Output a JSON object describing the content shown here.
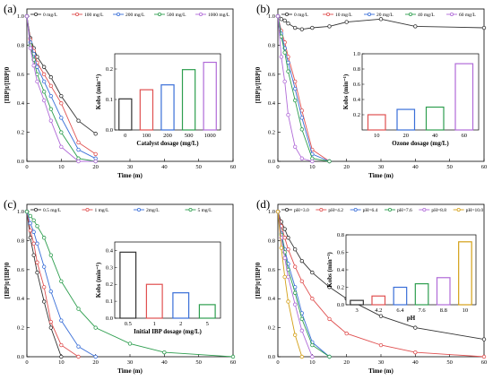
{
  "figure": {
    "panel_labels": [
      "(a)",
      "(b)",
      "(c)",
      "(d)"
    ]
  },
  "chart_data": [
    {
      "panel": "(a)",
      "type": "line",
      "xlabel": "Time (m)",
      "ylabel": "[IBP]t/[IBP]0",
      "xlim": [
        0,
        60
      ],
      "ylim": [
        0,
        1.05
      ],
      "xticks": [
        "0",
        "10",
        "20",
        "30",
        "40",
        "50",
        "60"
      ],
      "yticks": [
        "0.0",
        "0.2",
        "0.4",
        "0.6",
        "0.8",
        "1.0"
      ],
      "legend_position": "top",
      "series": [
        {
          "name": "0 mg/L",
          "color": "#333333",
          "x": [
            0,
            1,
            2,
            3,
            5,
            7,
            10,
            15,
            20
          ],
          "y": [
            1.0,
            0.85,
            0.78,
            0.72,
            0.65,
            0.58,
            0.45,
            0.28,
            0.19
          ]
        },
        {
          "name": "100 mg/L",
          "color": "#e05050",
          "x": [
            0,
            1,
            2,
            3,
            5,
            7,
            10,
            15,
            20
          ],
          "y": [
            1.0,
            0.84,
            0.76,
            0.68,
            0.6,
            0.52,
            0.4,
            0.13,
            0.05
          ]
        },
        {
          "name": "200 mg/L",
          "color": "#3a6fd8",
          "x": [
            0,
            1,
            2,
            3,
            5,
            7,
            10,
            15,
            20
          ],
          "y": [
            1.0,
            0.82,
            0.74,
            0.65,
            0.55,
            0.45,
            0.3,
            0.08,
            0.02
          ]
        },
        {
          "name": "500 mg/L",
          "color": "#2e9e4f",
          "x": [
            0,
            1,
            2,
            3,
            5,
            7,
            10,
            15,
            20
          ],
          "y": [
            1.0,
            0.8,
            0.7,
            0.6,
            0.48,
            0.36,
            0.2,
            0.02,
            0.0
          ]
        },
        {
          "name": "1000 mg/L",
          "color": "#b06ad8",
          "x": [
            0,
            1,
            2,
            3,
            5,
            7,
            10,
            15,
            20
          ],
          "y": [
            1.0,
            0.78,
            0.66,
            0.55,
            0.42,
            0.28,
            0.1,
            0.0,
            0.0
          ]
        }
      ],
      "inset": {
        "type": "bar",
        "xlabel": "Catalyst dosage (mg/L)",
        "ylabel": "Kobs (min⁻¹)",
        "ylim": [
          0,
          0.25
        ],
        "yticks": [
          "0.0",
          "0.1",
          "0.2"
        ],
        "categories": [
          "0",
          "100",
          "200",
          "500",
          "1000"
        ],
        "values": [
          0.102,
          0.132,
          0.148,
          0.198,
          0.222
        ],
        "colors": [
          "#333333",
          "#e05050",
          "#3a6fd8",
          "#2e9e4f",
          "#b06ad8"
        ]
      }
    },
    {
      "panel": "(b)",
      "type": "line",
      "xlabel": "Time (m)",
      "ylabel": "[IBP]t/[IBP]0",
      "xlim": [
        0,
        60
      ],
      "ylim": [
        0,
        1.05
      ],
      "xticks": [
        "0",
        "10",
        "20",
        "30",
        "40",
        "50",
        "60"
      ],
      "yticks": [
        "0.0",
        "0.2",
        "0.4",
        "0.6",
        "0.8",
        "1.0"
      ],
      "legend_position": "top",
      "series": [
        {
          "name": "0 mg/L",
          "color": "#333333",
          "x": [
            0,
            1,
            2,
            3,
            5,
            7,
            10,
            15,
            20,
            30,
            40,
            60
          ],
          "y": [
            1.0,
            0.98,
            0.97,
            0.95,
            0.92,
            0.91,
            0.92,
            0.93,
            0.96,
            0.98,
            0.93,
            0.92
          ]
        },
        {
          "name": "10 mg/L",
          "color": "#e05050",
          "x": [
            0,
            1,
            2,
            3,
            5,
            7,
            10,
            15
          ],
          "y": [
            1.0,
            0.9,
            0.82,
            0.72,
            0.55,
            0.35,
            0.08,
            0.0
          ]
        },
        {
          "name": "20 mg/L",
          "color": "#3a6fd8",
          "x": [
            0,
            1,
            2,
            3,
            5,
            7,
            10,
            15
          ],
          "y": [
            1.0,
            0.88,
            0.78,
            0.68,
            0.5,
            0.3,
            0.05,
            0.0
          ]
        },
        {
          "name": "40 mg/L",
          "color": "#2e9e4f",
          "x": [
            0,
            1,
            2,
            3,
            5,
            7,
            10,
            15
          ],
          "y": [
            1.0,
            0.86,
            0.75,
            0.62,
            0.42,
            0.22,
            0.02,
            0.0
          ]
        },
        {
          "name": "60 mg/L",
          "color": "#b06ad8",
          "x": [
            0,
            1,
            2,
            3,
            5,
            7,
            10
          ],
          "y": [
            1.0,
            0.72,
            0.55,
            0.32,
            0.1,
            0.02,
            0.0
          ]
        }
      ],
      "inset": {
        "type": "bar",
        "xlabel": "Ozone dosage (mg/L)",
        "ylabel": "Kobs (min⁻¹)",
        "ylim": [
          0,
          1.0
        ],
        "yticks": [
          "0.2",
          "0.4",
          "0.6",
          "0.8",
          "1.0"
        ],
        "categories": [
          "10",
          "20",
          "40",
          "60"
        ],
        "values": [
          0.2,
          0.27,
          0.3,
          0.87
        ],
        "colors": [
          "#e05050",
          "#3a6fd8",
          "#2e9e4f",
          "#b06ad8"
        ]
      }
    },
    {
      "panel": "(c)",
      "type": "line",
      "xlabel": "Time (m)",
      "ylabel": "[IBP]t/[IBP]0",
      "xlim": [
        0,
        60
      ],
      "ylim": [
        0,
        1.05
      ],
      "xticks": [
        "0",
        "10",
        "20",
        "30",
        "40",
        "50",
        "60"
      ],
      "yticks": [
        "0.0",
        "0.2",
        "0.4",
        "0.6",
        "0.8",
        "1.0"
      ],
      "legend_position": "top",
      "series": [
        {
          "name": "0.5 mg/L",
          "color": "#333333",
          "x": [
            0,
            1,
            2,
            3,
            5,
            7,
            10
          ],
          "y": [
            1.0,
            0.82,
            0.7,
            0.58,
            0.38,
            0.2,
            0.0
          ]
        },
        {
          "name": "1 mg/L",
          "color": "#e05050",
          "x": [
            0,
            1,
            2,
            3,
            5,
            7,
            10,
            15
          ],
          "y": [
            1.0,
            0.87,
            0.78,
            0.65,
            0.48,
            0.24,
            0.08,
            0.0
          ]
        },
        {
          "name": "2mg/L",
          "color": "#3a6fd8",
          "x": [
            0,
            1,
            2,
            3,
            5,
            7,
            10,
            15,
            20
          ],
          "y": [
            1.0,
            0.92,
            0.86,
            0.78,
            0.62,
            0.45,
            0.25,
            0.07,
            0.0
          ]
        },
        {
          "name": "5 mg/L",
          "color": "#2e9e4f",
          "x": [
            0,
            1,
            2,
            3,
            5,
            7,
            10,
            15,
            20,
            30,
            40,
            60
          ],
          "y": [
            1.0,
            0.97,
            0.94,
            0.9,
            0.82,
            0.7,
            0.52,
            0.33,
            0.2,
            0.09,
            0.03,
            0.0
          ]
        }
      ],
      "inset": {
        "type": "bar",
        "xlabel": "Initial IBP dosage (mg/L)",
        "ylabel": "Kobs (min⁻¹)",
        "ylim": [
          0,
          0.45
        ],
        "yticks": [
          "0.0",
          "0.1",
          "0.2",
          "0.3",
          "0.4"
        ],
        "categories": [
          "0.5",
          "1",
          "2",
          "5"
        ],
        "values": [
          0.39,
          0.2,
          0.15,
          0.08
        ],
        "colors": [
          "#333333",
          "#e05050",
          "#3a6fd8",
          "#2e9e4f"
        ]
      }
    },
    {
      "panel": "(d)",
      "type": "line",
      "xlabel": "Time (m)",
      "ylabel": "[IBP]t/[IBP]0",
      "xlim": [
        0,
        60
      ],
      "ylim": [
        0,
        1.05
      ],
      "xticks": [
        "0",
        "10",
        "20",
        "30",
        "40",
        "50",
        "60"
      ],
      "yticks": [
        "0.0",
        "0.2",
        "0.4",
        "0.6",
        "0.8",
        "1.0"
      ],
      "legend_position": "top",
      "series": [
        {
          "name": "pH=3.0",
          "color": "#333333",
          "x": [
            0,
            1,
            2,
            3,
            5,
            7,
            10,
            15,
            20,
            30,
            40,
            60
          ],
          "y": [
            1.0,
            0.93,
            0.88,
            0.82,
            0.74,
            0.66,
            0.58,
            0.48,
            0.4,
            0.28,
            0.2,
            0.12
          ]
        },
        {
          "name": "pH=4.2",
          "color": "#e05050",
          "x": [
            0,
            1,
            2,
            3,
            5,
            7,
            10,
            15,
            20,
            30,
            40,
            60
          ],
          "y": [
            1.0,
            0.9,
            0.82,
            0.74,
            0.62,
            0.52,
            0.4,
            0.26,
            0.16,
            0.08,
            0.03,
            0.0
          ]
        },
        {
          "name": "pH=6.4",
          "color": "#3a6fd8",
          "x": [
            0,
            1,
            2,
            3,
            5,
            7,
            10,
            15
          ],
          "y": [
            1.0,
            0.85,
            0.74,
            0.64,
            0.48,
            0.3,
            0.1,
            0.0
          ]
        },
        {
          "name": "pH=7.6",
          "color": "#2e9e4f",
          "x": [
            0,
            1,
            2,
            3,
            5,
            7,
            10,
            15
          ],
          "y": [
            1.0,
            0.84,
            0.72,
            0.6,
            0.44,
            0.26,
            0.08,
            0.0
          ]
        },
        {
          "name": "pH=8.8",
          "color": "#b06ad8",
          "x": [
            0,
            1,
            2,
            3,
            5,
            7,
            10
          ],
          "y": [
            1.0,
            0.82,
            0.68,
            0.55,
            0.36,
            0.18,
            0.0
          ]
        },
        {
          "name": "pH=10.0",
          "color": "#d4a017",
          "x": [
            0,
            1,
            2,
            3,
            5,
            7
          ],
          "y": [
            1.0,
            0.75,
            0.55,
            0.38,
            0.15,
            0.0
          ]
        }
      ],
      "inset": {
        "type": "bar",
        "xlabel": "pH",
        "ylabel": "Kobs (min⁻¹)",
        "ylim": [
          0,
          0.8
        ],
        "yticks": [
          "0.0",
          "0.2",
          "0.4",
          "0.6",
          "0.8"
        ],
        "categories": [
          "3",
          "4.2",
          "6.4",
          "7.6",
          "8.8",
          "10"
        ],
        "values": [
          0.05,
          0.1,
          0.2,
          0.24,
          0.31,
          0.72
        ],
        "colors": [
          "#333333",
          "#e05050",
          "#3a6fd8",
          "#2e9e4f",
          "#b06ad8",
          "#d4a017"
        ]
      }
    }
  ]
}
